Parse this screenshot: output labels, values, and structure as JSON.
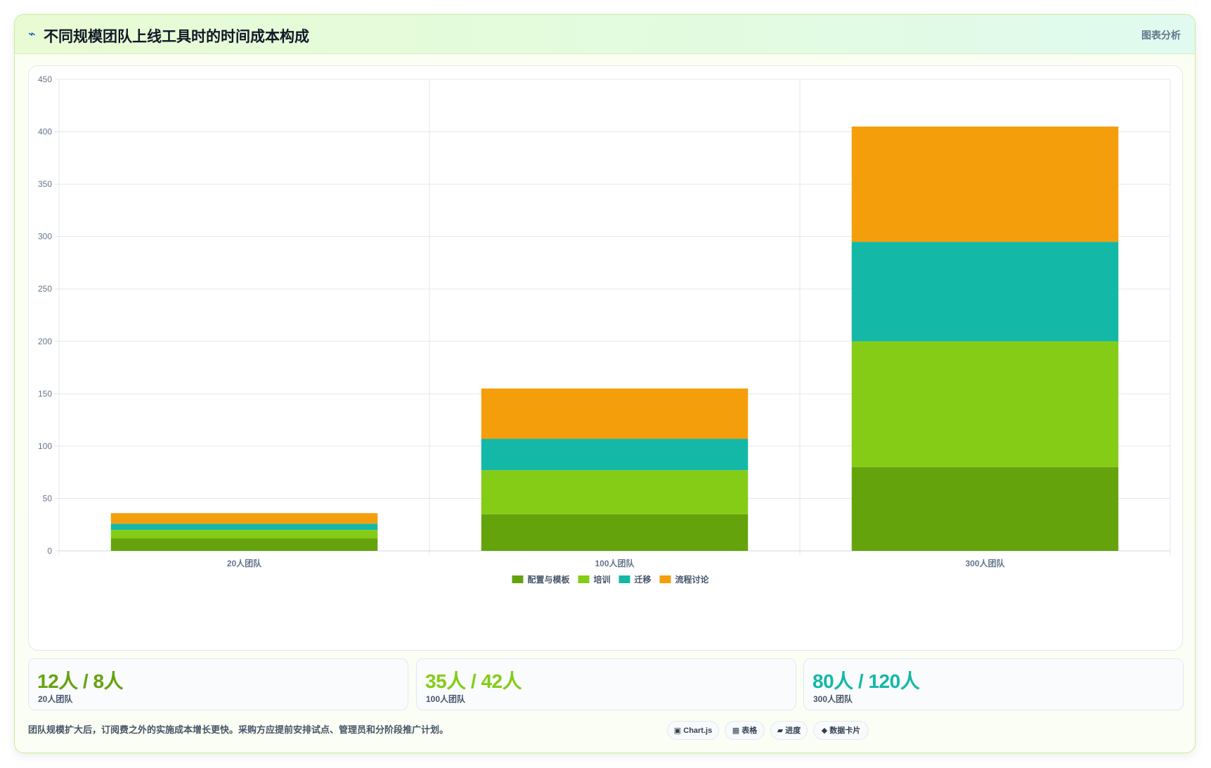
{
  "header": {
    "icon": "chart-spark-icon",
    "title": "不同规模团队上线工具时的时间成本构成",
    "analysis_label": "图表分析"
  },
  "chart_data": {
    "type": "bar",
    "stacked": true,
    "categories": [
      "20人团队",
      "100人团队",
      "300人团队"
    ],
    "series": [
      {
        "name": "配置与模板",
        "color": "#65a30d",
        "values": [
          12,
          35,
          80
        ]
      },
      {
        "name": "培训",
        "color": "#84cc16",
        "values": [
          8,
          42,
          120
        ]
      },
      {
        "name": "迁移",
        "color": "#14b8a6",
        "values": [
          6,
          30,
          95
        ]
      },
      {
        "name": "流程讨论",
        "color": "#f59e0b",
        "values": [
          10,
          48,
          110
        ]
      }
    ],
    "ylim": [
      0,
      450
    ],
    "yticks": [
      0,
      50,
      100,
      150,
      200,
      250,
      300,
      350,
      400,
      450
    ],
    "grid": true,
    "legend": "bottom"
  },
  "stats": [
    {
      "value": "12人 / 8人",
      "label": "20人团队",
      "color": "#65a30d"
    },
    {
      "value": "35人 / 42人",
      "label": "100人团队",
      "color": "#84cc16"
    },
    {
      "value": "80人 / 120人",
      "label": "300人团队",
      "color": "#14b8a6"
    }
  ],
  "footer": {
    "note": "团队规模扩大后，订阅费之外的实施成本增长更快。采购方应提前安排试点、管理员和分阶段推广计划。",
    "chips": [
      {
        "icon": "▣",
        "label": "Chart.js"
      },
      {
        "icon": "▦",
        "label": "表格"
      },
      {
        "icon": "▰",
        "label": "进度"
      },
      {
        "icon": "◆",
        "label": "数据卡片"
      }
    ]
  }
}
